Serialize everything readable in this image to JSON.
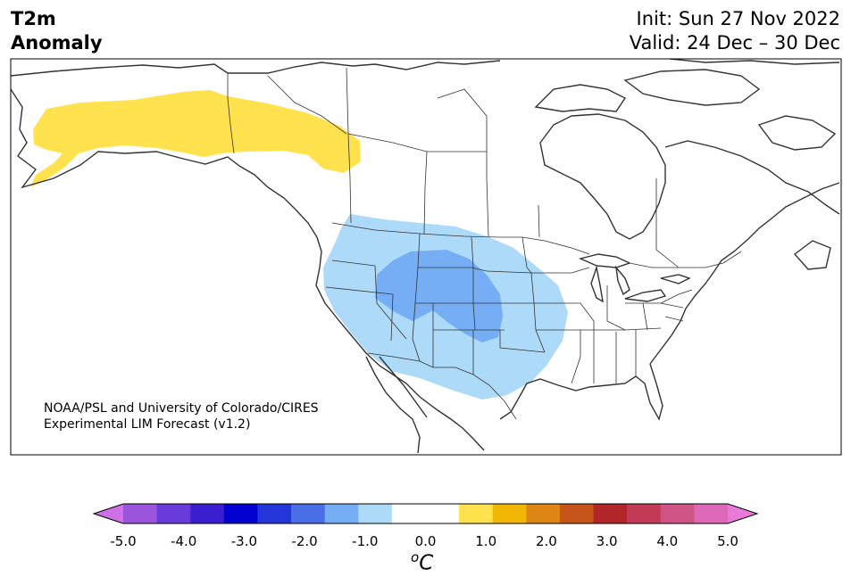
{
  "header": {
    "variable": "T2m",
    "subtitle": "Anomaly",
    "init": "Init: Sun 27 Nov 2022",
    "valid": "Valid: 24 Dec – 30 Dec"
  },
  "credit": {
    "line1": "NOAA/PSL and University of Colorado/CIRES",
    "line2": "Experimental LIM Forecast (v1.2)"
  },
  "colorbar": {
    "unit_symbol": "o",
    "unit_letter": "C",
    "tick_labels": [
      "-5.0",
      "-4.0",
      "-3.0",
      "-2.0",
      "-1.0",
      "0.0",
      "1.0",
      "2.0",
      "3.0",
      "4.0",
      "5.0"
    ],
    "colors": [
      "#d070e8",
      "#9b55dd",
      "#6a3bdb",
      "#3a1fd0",
      "#0000d0",
      "#2436d9",
      "#4a6ee6",
      "#76aef5",
      "#aedaf9",
      "#ffffff",
      "#ffffff",
      "#ffe24d",
      "#f2b705",
      "#dd8616",
      "#c6551a",
      "#b2262a",
      "#c23b56",
      "#cf5385",
      "#dd68b8",
      "#e87ad8"
    ]
  },
  "anomalies": [
    {
      "name": "alaska-yukon-warm",
      "level": "+0.5 to +1.0",
      "color": "#ffe24d"
    },
    {
      "name": "west-cold-outer",
      "level": "-1.0 to -0.5",
      "color": "#aedaf9"
    },
    {
      "name": "rockies-cold-inner",
      "level": "-1.5 to -1.0",
      "color": "#76aef5"
    }
  ]
}
